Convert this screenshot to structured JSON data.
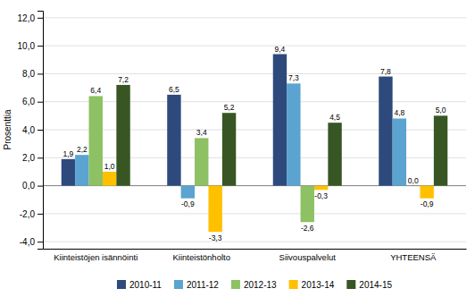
{
  "chart_data": {
    "type": "bar",
    "ylabel": "Prosenttia",
    "categories": [
      "Kiinteistöjen isännöinti",
      "Kiinteistönholto",
      "Siivouspalvelut",
      "YHTEENSÄ"
    ],
    "series": [
      {
        "name": "2010-11",
        "color": "#2E4A7C",
        "values": [
          1.9,
          6.5,
          9.4,
          7.8
        ],
        "value_labels": [
          "1,9",
          "6,5",
          "9,4",
          "7,8"
        ]
      },
      {
        "name": "2011-12",
        "color": "#5BA3D0",
        "values": [
          2.2,
          -0.9,
          7.3,
          4.8
        ],
        "value_labels": [
          "2,2",
          "-0,9",
          "7,3",
          "4,8"
        ]
      },
      {
        "name": "2012-13",
        "color": "#8DC163",
        "values": [
          6.4,
          3.4,
          -2.6,
          0.0
        ],
        "value_labels": [
          "6,4",
          "3,4",
          "-2,6",
          "0,0"
        ]
      },
      {
        "name": "2013-14",
        "color": "#FFC000",
        "values": [
          1.0,
          -3.3,
          -0.3,
          -0.9
        ],
        "value_labels": [
          "1,0",
          "-3,3",
          "-0,3",
          "-0,9"
        ]
      },
      {
        "name": "2014-15",
        "color": "#375623",
        "values": [
          7.2,
          5.2,
          4.5,
          5.0
        ],
        "value_labels": [
          "7,2",
          "5,2",
          "4,5",
          "5,0"
        ]
      }
    ],
    "ylim": [
      -4.5,
      12.5
    ],
    "yticks": [
      {
        "value": -4.0,
        "label": "-4,0"
      },
      {
        "value": -2.0,
        "label": "-2,0"
      },
      {
        "value": 0.0,
        "label": "0,0"
      },
      {
        "value": 2.0,
        "label": "2,0"
      },
      {
        "value": 4.0,
        "label": "4,0"
      },
      {
        "value": 6.0,
        "label": "6,0"
      },
      {
        "value": 8.0,
        "label": "8,0"
      },
      {
        "value": 10.0,
        "label": "10,0"
      },
      {
        "value": 12.0,
        "label": "12,0"
      }
    ],
    "grid": true,
    "legend": "bottom",
    "data_labels": true
  }
}
